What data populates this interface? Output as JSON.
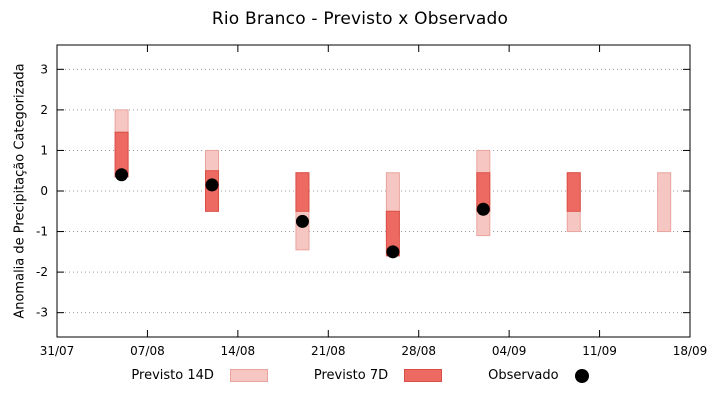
{
  "chart_data": {
    "type": "bar",
    "title": "Rio Branco - Previsto x Observado",
    "xlabel": "",
    "ylabel": "Anomalia de Precipitação Categorizada",
    "ylim": [
      -3.6,
      3.6
    ],
    "yticks": [
      -3,
      -2,
      -1,
      0,
      1,
      2,
      3
    ],
    "grid": "horizontal-dotted",
    "legend_position": "bottom-center",
    "x_axis_days_span": 49,
    "xtick_days": [
      0,
      7,
      14,
      21,
      28,
      35,
      42,
      49
    ],
    "xtick_labels": [
      "31/07",
      "07/08",
      "14/08",
      "21/08",
      "28/08",
      "04/09",
      "11/09",
      "18/09"
    ],
    "series": [
      {
        "name": "Previsto 14D",
        "type": "range-bar",
        "fill": "#f6c7c2",
        "border": "#e9a49e"
      },
      {
        "name": "Previsto 7D",
        "type": "range-bar",
        "fill": "#ec6a62",
        "border": "#d94f46"
      },
      {
        "name": "Observado",
        "type": "point",
        "fill": "#000000"
      }
    ],
    "clusters": [
      {
        "day": 5,
        "date": "05/08",
        "previsto_14d": [
          0.35,
          2.0
        ],
        "previsto_7d": [
          0.35,
          1.45
        ],
        "observado": 0.4
      },
      {
        "day": 12,
        "date": "12/08",
        "previsto_14d": [
          -0.5,
          1.0
        ],
        "previsto_7d": [
          -0.5,
          0.5
        ],
        "observado": 0.15
      },
      {
        "day": 19,
        "date": "19/08",
        "previsto_14d": [
          -1.45,
          0.45
        ],
        "previsto_7d": [
          -0.5,
          0.45
        ],
        "observado": -0.75
      },
      {
        "day": 26,
        "date": "26/08",
        "previsto_14d": [
          -1.1,
          0.45
        ],
        "previsto_7d": [
          -1.6,
          -0.5
        ],
        "observado": -1.5
      },
      {
        "day": 33,
        "date": "02/09",
        "previsto_14d": [
          -1.1,
          1.0
        ],
        "previsto_7d": [
          -0.5,
          0.45
        ],
        "observado": -0.45
      },
      {
        "day": 40,
        "date": "09/09",
        "previsto_14d": [
          -1.0,
          0.45
        ],
        "previsto_7d": [
          -0.5,
          0.45
        ],
        "observado": null
      },
      {
        "day": 47,
        "date": "16/09",
        "previsto_14d": [
          -1.0,
          0.45
        ],
        "previsto_7d": null,
        "observado": null
      }
    ],
    "legend": [
      {
        "label": "Previsto 14D",
        "swatch": "light-bar"
      },
      {
        "label": "Previsto 7D",
        "swatch": "dark-bar"
      },
      {
        "label": "Observado",
        "swatch": "dot"
      }
    ],
    "axis_color": "#000000",
    "grid_color": "#9a9a9a"
  }
}
